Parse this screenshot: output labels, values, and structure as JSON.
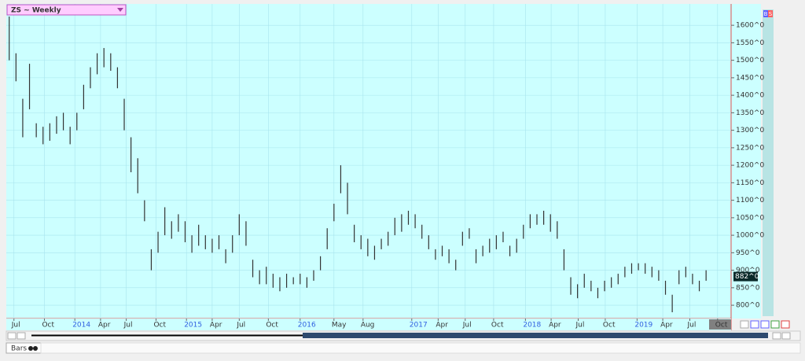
{
  "chart_data": {
    "type": "ohlc",
    "title": "ZS ~ Weekly",
    "bottom_label": "Bars",
    "buttons": [
      "B",
      "S"
    ],
    "color": "#333333",
    "grid": true,
    "last_price": {
      "value": 882,
      "label": "882^0"
    },
    "ylim": [
      762,
      1661
    ],
    "yticks": [
      {
        "value": 800,
        "label": "800^0"
      },
      {
        "value": 850,
        "label": "850^0"
      },
      {
        "value": 900,
        "label": "900^0"
      },
      {
        "value": 950,
        "label": "950^0"
      },
      {
        "value": 1000,
        "label": "1000^0"
      },
      {
        "value": 1050,
        "label": "1050^0"
      },
      {
        "value": 1100,
        "label": "1100^0"
      },
      {
        "value": 1150,
        "label": "1150^0"
      },
      {
        "value": 1200,
        "label": "1200^0"
      },
      {
        "value": 1250,
        "label": "1250^0"
      },
      {
        "value": 1300,
        "label": "1300^0"
      },
      {
        "value": 1350,
        "label": "1350^0"
      },
      {
        "value": 1400,
        "label": "1400^0"
      },
      {
        "value": 1450,
        "label": "1450^0"
      },
      {
        "value": 1500,
        "label": "1500^0"
      },
      {
        "value": 1550,
        "label": "1550^0"
      },
      {
        "value": 1600,
        "label": "1600^0"
      }
    ],
    "xlim": [
      -0.2,
      106.7
    ],
    "xticks": [
      {
        "value": 0.7,
        "label": "Jul"
      },
      {
        "value": 5.2,
        "label": "Oct"
      },
      {
        "value": 9.7,
        "label": "2014"
      },
      {
        "value": 13.5,
        "label": "Apr"
      },
      {
        "value": 17.3,
        "label": "Jul"
      },
      {
        "value": 21.7,
        "label": "Oct"
      },
      {
        "value": 26.2,
        "label": "2015"
      },
      {
        "value": 30,
        "label": "Apr"
      },
      {
        "value": 34,
        "label": "Jul"
      },
      {
        "value": 38.3,
        "label": "Oct"
      },
      {
        "value": 43,
        "label": "2016"
      },
      {
        "value": 48,
        "label": "May"
      },
      {
        "value": 52.3,
        "label": "Aug"
      },
      {
        "value": 59.5,
        "label": "2017"
      },
      {
        "value": 63.4,
        "label": "Apr"
      },
      {
        "value": 67.4,
        "label": "Jul"
      },
      {
        "value": 71.6,
        "label": "Oct"
      },
      {
        "value": 76.3,
        "label": "2018"
      },
      {
        "value": 80.1,
        "label": "Apr"
      },
      {
        "value": 84.1,
        "label": "Jul"
      },
      {
        "value": 88.1,
        "label": "Oct"
      },
      {
        "value": 92.8,
        "label": "2019"
      },
      {
        "value": 96.6,
        "label": "Apr"
      },
      {
        "value": 100.6,
        "label": "Jul"
      },
      {
        "value": 104.7,
        "label": "Oct"
      }
    ],
    "high": [
      1625,
      1520,
      1390,
      1490,
      1320,
      1310,
      1320,
      1340,
      1350,
      1310,
      1350,
      1430,
      1480,
      1520,
      1535,
      1520,
      1480,
      1390,
      1280,
      1220,
      1100,
      960,
      1010,
      1080,
      1040,
      1060,
      1040,
      1000,
      1030,
      1000,
      990,
      1000,
      960,
      1000,
      1060,
      1040,
      930,
      900,
      910,
      890,
      880,
      890,
      880,
      890,
      880,
      900,
      940,
      1020,
      1090,
      1200,
      1150,
      1030,
      1000,
      990,
      970,
      990,
      1010,
      1050,
      1060,
      1070,
      1060,
      1030,
      1000,
      960,
      970,
      960,
      930,
      1010,
      1020,
      960,
      970,
      990,
      1000,
      1010,
      970,
      990,
      1030,
      1060,
      1060,
      1070,
      1060,
      1040,
      960,
      880,
      860,
      890,
      870,
      850,
      870,
      880,
      890,
      910,
      920,
      920,
      920,
      910,
      900,
      870,
      830,
      900,
      910,
      890,
      870,
      900
    ],
    "low": [
      1500,
      1440,
      1280,
      1360,
      1280,
      1260,
      1270,
      1290,
      1300,
      1260,
      1300,
      1360,
      1420,
      1460,
      1480,
      1470,
      1420,
      1300,
      1180,
      1120,
      1040,
      900,
      950,
      1000,
      990,
      1010,
      980,
      950,
      970,
      960,
      950,
      960,
      920,
      950,
      1000,
      970,
      880,
      860,
      860,
      850,
      840,
      850,
      860,
      860,
      850,
      870,
      900,
      960,
      1040,
      1120,
      1060,
      980,
      960,
      940,
      930,
      960,
      970,
      1000,
      1010,
      1030,
      1020,
      990,
      960,
      930,
      940,
      920,
      900,
      970,
      990,
      920,
      940,
      950,
      960,
      980,
      940,
      950,
      990,
      1020,
      1030,
      1030,
      1010,
      990,
      900,
      830,
      820,
      850,
      840,
      820,
      840,
      850,
      860,
      880,
      890,
      900,
      890,
      880,
      870,
      830,
      780,
      860,
      880,
      860,
      840,
      870
    ]
  }
}
